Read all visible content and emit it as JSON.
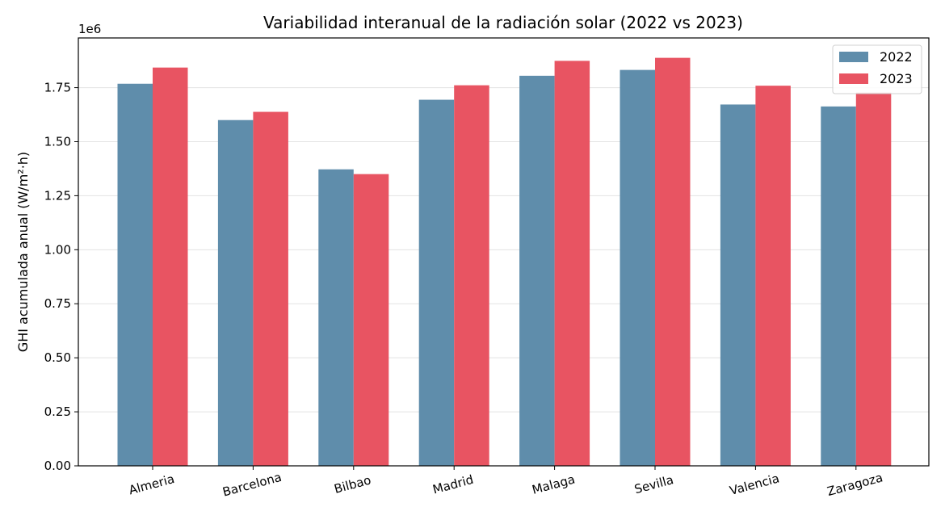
{
  "chart_data": {
    "type": "bar",
    "title": "Variabilidad interanual de la radiación solar (2022 vs 2023)",
    "xlabel": "",
    "ylabel": "GHI acumulada anual (W/m²·h)",
    "y_offset_label": "1e6",
    "categories": [
      "Almeria",
      "Barcelona",
      "Bilbao",
      "Madrid",
      "Malaga",
      "Sevilla",
      "Valencia",
      "Zaragoza"
    ],
    "series": [
      {
        "name": "2022",
        "color": "#5f8dab",
        "values": [
          1768000,
          1600000,
          1372000,
          1694000,
          1805000,
          1832000,
          1672000,
          1663000
        ]
      },
      {
        "name": "2023",
        "color": "#e85462",
        "values": [
          1843000,
          1638000,
          1350000,
          1761000,
          1874000,
          1888000,
          1759000,
          1728000
        ]
      }
    ],
    "ylim": [
      0,
      1980000
    ],
    "yticks": [
      0,
      250000,
      500000,
      750000,
      1000000,
      1250000,
      1500000,
      1750000
    ],
    "ytick_labels": [
      "0.00",
      "0.25",
      "0.50",
      "0.75",
      "1.00",
      "1.25",
      "1.50",
      "1.75"
    ],
    "grid": "y",
    "legend_position": "top-right"
  }
}
